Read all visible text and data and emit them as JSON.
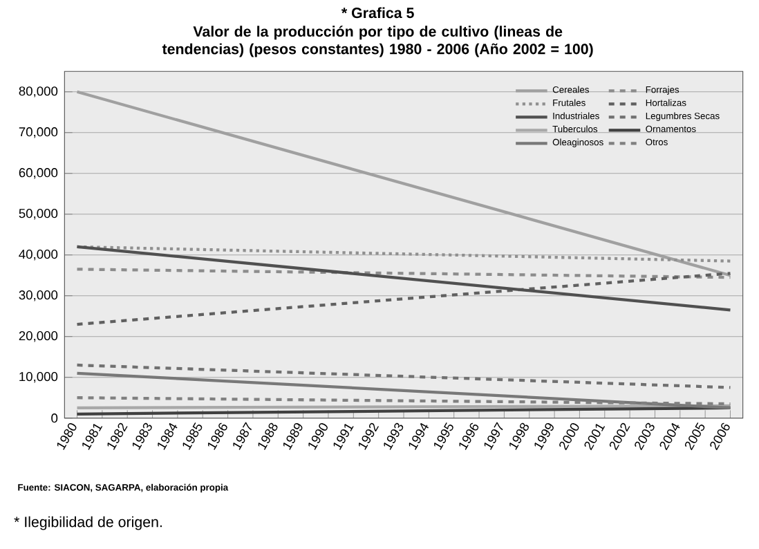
{
  "chart_data": {
    "type": "line",
    "title": "* Grafica 5",
    "subtitle": "Valor de la producción por tipo de cultivo (lineas de tendencias) (pesos constantes) 1980 - 2006 (Año  2002 = 100)",
    "annotations": [
      "Fuente: SIACON, SAGARPA, elaboración propia",
      "* Ilegibilidad de origen."
    ],
    "x": [
      1980,
      2006
    ],
    "xlim": [
      1979.5,
      2006.5
    ],
    "xticks": [
      1980,
      1981,
      1982,
      1983,
      1984,
      1985,
      1986,
      1987,
      1988,
      1989,
      1990,
      1991,
      1992,
      1993,
      1994,
      1995,
      1996,
      1997,
      1998,
      1999,
      2000,
      2001,
      2002,
      2003,
      2004,
      2005,
      2006
    ],
    "ylim": [
      0,
      85000
    ],
    "yticks": [
      {
        "value": 0,
        "label": "0"
      },
      {
        "value": 10000,
        "label": "10,000"
      },
      {
        "value": 20000,
        "label": "20,000"
      },
      {
        "value": 30000,
        "label": "30,000"
      },
      {
        "value": 40000,
        "label": "40,000"
      },
      {
        "value": 50000,
        "label": "50,000"
      },
      {
        "value": 60000,
        "label": "60,000"
      },
      {
        "value": 70000,
        "label": "70,000"
      },
      {
        "value": 80000,
        "label": "80,000"
      }
    ],
    "grid": "y",
    "legend": "top right",
    "series": [
      {
        "name": "Cereales",
        "color": "#a0a0a0",
        "line_style": "solid",
        "values": [
          80000,
          35000
        ]
      },
      {
        "name": "Forrajes",
        "color": "#8c8c8c",
        "line_style": "dashed",
        "values": [
          36500,
          34500
        ]
      },
      {
        "name": "Frutales",
        "color": "#909090",
        "line_style": "dotted",
        "values": [
          42000,
          38500
        ]
      },
      {
        "name": "Hortalizas",
        "color": "#606060",
        "line_style": "dashed",
        "values": [
          23000,
          35500
        ]
      },
      {
        "name": "Industriales",
        "color": "#505050",
        "line_style": "solid",
        "values": [
          42000,
          26500
        ]
      },
      {
        "name": "Legumbres Secas",
        "color": "#707070",
        "line_style": "dashed",
        "values": [
          13000,
          7500
        ]
      },
      {
        "name": "Tuberculos",
        "color": "#a8a8a8",
        "line_style": "solid",
        "values": [
          2500,
          3000
        ]
      },
      {
        "name": "Ornamentos",
        "color": "#404040",
        "line_style": "solid",
        "values": [
          1000,
          2500
        ]
      },
      {
        "name": "Oleaginosos",
        "color": "#787878",
        "line_style": "solid",
        "values": [
          11000,
          2500
        ]
      },
      {
        "name": "Otros",
        "color": "#808080",
        "line_style": "dashed",
        "values": [
          5000,
          3500
        ]
      }
    ]
  }
}
